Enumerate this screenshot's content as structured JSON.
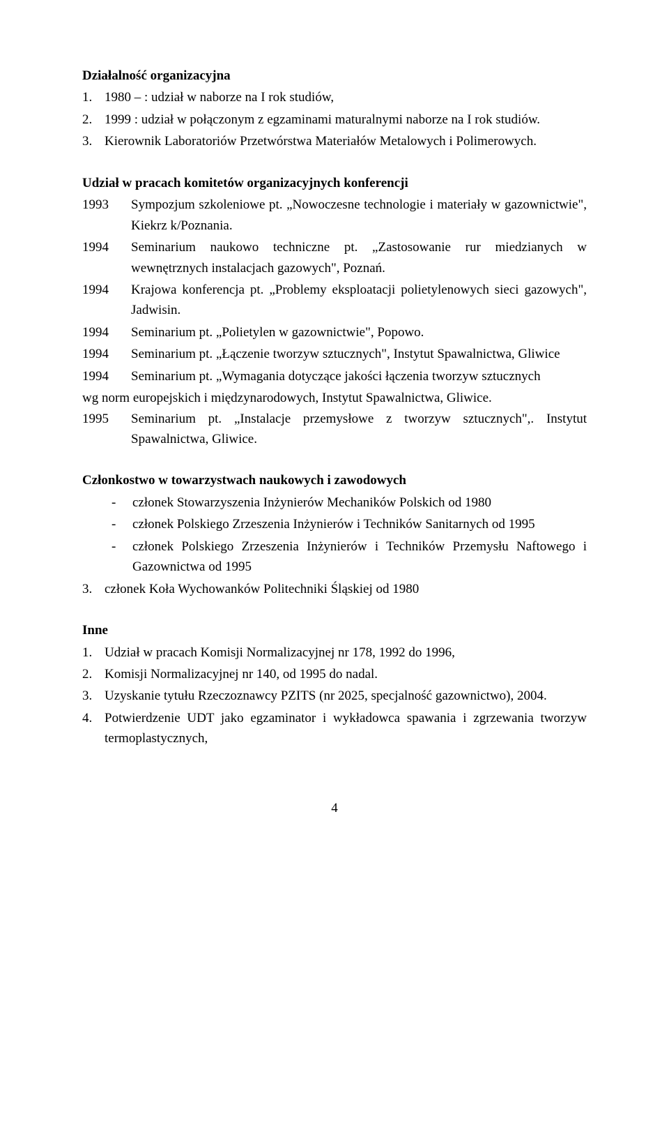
{
  "org": {
    "title": "Działalność organizacyjna",
    "items": [
      {
        "num": "1.",
        "text": "1980 – : udział w naborze na I rok studiów,"
      },
      {
        "num": "2.",
        "text": "1999 : udział w połączonym z egzaminami maturalnymi naborze na I rok studiów."
      },
      {
        "num": "3.",
        "text": "Kierownik Laboratoriów Przetwórstwa Materiałów Metalowych i Polimerowych."
      }
    ]
  },
  "conf": {
    "title": "Udział w pracach komitetów organizacyjnych konferencji",
    "rows": [
      {
        "year": "1993",
        "body": "Sympozjum szkoleniowe pt. „Nowoczesne technologie i materiały w gazownictwie\", Kiekrz k/Poznania."
      },
      {
        "year": "1994",
        "body": "Seminarium naukowo techniczne pt. „Zastosowanie rur miedzianych w wewnętrznych instalacjach gazowych\", Poznań."
      },
      {
        "year": "1994",
        "body": "Krajowa konferencja pt. „Problemy eksploatacji polietylenowych sieci gazowych\", Jadwisin."
      },
      {
        "year": "1994",
        "body": "Seminarium pt. „Polietylen w gazownictwie\", Popowo."
      },
      {
        "year": "1994",
        "body": "Seminarium pt. „Łączenie tworzyw sztucznych\", Instytut Spawalnictwa, Gliwice"
      },
      {
        "year": "1994",
        "body_a": "Seminarium pt. „Wymagania dotyczące jakości łączenia tworzyw sztucznych",
        "body_b": "wg norm europejskich i międzynarodowych, Instytut Spawalnictwa, Gliwice."
      },
      {
        "year": "1995",
        "body": "Seminarium pt. „Instalacje przemysłowe z tworzyw sztucznych\",. Instytut Spawalnictwa, Gliwice."
      }
    ]
  },
  "memb": {
    "title": "Członkostwo w towarzystwach naukowych i zawodowych",
    "dash": [
      "członek Stowarzyszenia Inżynierów Mechaników Polskich od 1980",
      "członek Polskiego Zrzeszenia Inżynierów i Techników Sanitarnych od 1995",
      "członek Polskiego Zrzeszenia Inżynierów i Techników Przemysłu Naftowego i Gazownictwa od 1995"
    ],
    "num3": {
      "num": "3.",
      "text": "członek Koła Wychowanków Politechniki Śląskiej od 1980"
    }
  },
  "inne": {
    "title": "Inne",
    "items": [
      {
        "num": "1.",
        "text": "Udział w pracach Komisji Normalizacyjnej nr 178, 1992 do 1996,"
      },
      {
        "num": "2.",
        "text": "Komisji Normalizacyjnej nr 140, od 1995 do nadal."
      },
      {
        "num": "3.",
        "text": "Uzyskanie tytułu Rzeczoznawcy PZITS (nr 2025, specjalność gazownictwo), 2004."
      },
      {
        "num": "4.",
        "text": "Potwierdzenie UDT jako egzaminator i wykładowca spawania i zgrzewania tworzyw termoplastycznych,"
      }
    ]
  },
  "page": "4"
}
